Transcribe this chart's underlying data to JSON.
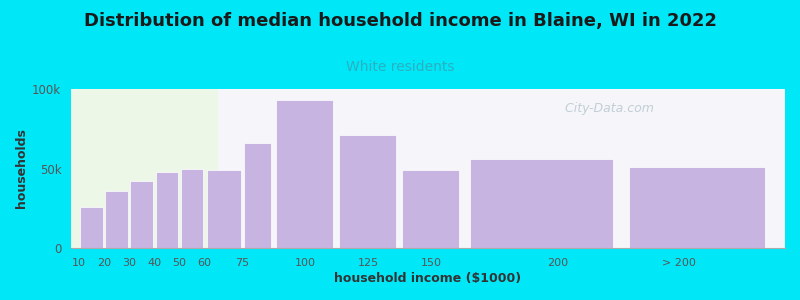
{
  "title": "Distribution of median household income in Blaine, WI in 2022",
  "subtitle": "White residents",
  "xlabel": "household income ($1000)",
  "ylabel": "households",
  "bar_color": "#c8b4e0",
  "background_color": "#00e8f8",
  "plot_bg_left": "#edf7e8",
  "plot_bg_right": "#f5f5fa",
  "ylim": [
    0,
    100000
  ],
  "yticks": [
    0,
    50000,
    100000
  ],
  "ytick_labels": [
    "0",
    "50k",
    "100k"
  ],
  "title_fontsize": 13,
  "subtitle_fontsize": 10,
  "axis_label_fontsize": 9,
  "watermark": "  City-Data.com",
  "bar_lefts": [
    10,
    20,
    30,
    40,
    50,
    60,
    75,
    87,
    112,
    137,
    162,
    225
  ],
  "bar_widths": [
    10,
    10,
    10,
    10,
    10,
    15,
    12,
    25,
    25,
    25,
    63,
    60
  ],
  "bar_heights": [
    26000,
    36000,
    42000,
    48000,
    50000,
    49000,
    66000,
    93000,
    71000,
    49000,
    56000,
    51000
  ],
  "xtick_positions": [
    10,
    20,
    30,
    40,
    50,
    60,
    75,
    100,
    125,
    150,
    200,
    248
  ],
  "xtick_labels": [
    "10",
    "20",
    "30",
    "40",
    "50",
    "60",
    "75",
    "100",
    "125",
    "150",
    "200",
    "> 200"
  ],
  "xlim": [
    7,
    290
  ]
}
